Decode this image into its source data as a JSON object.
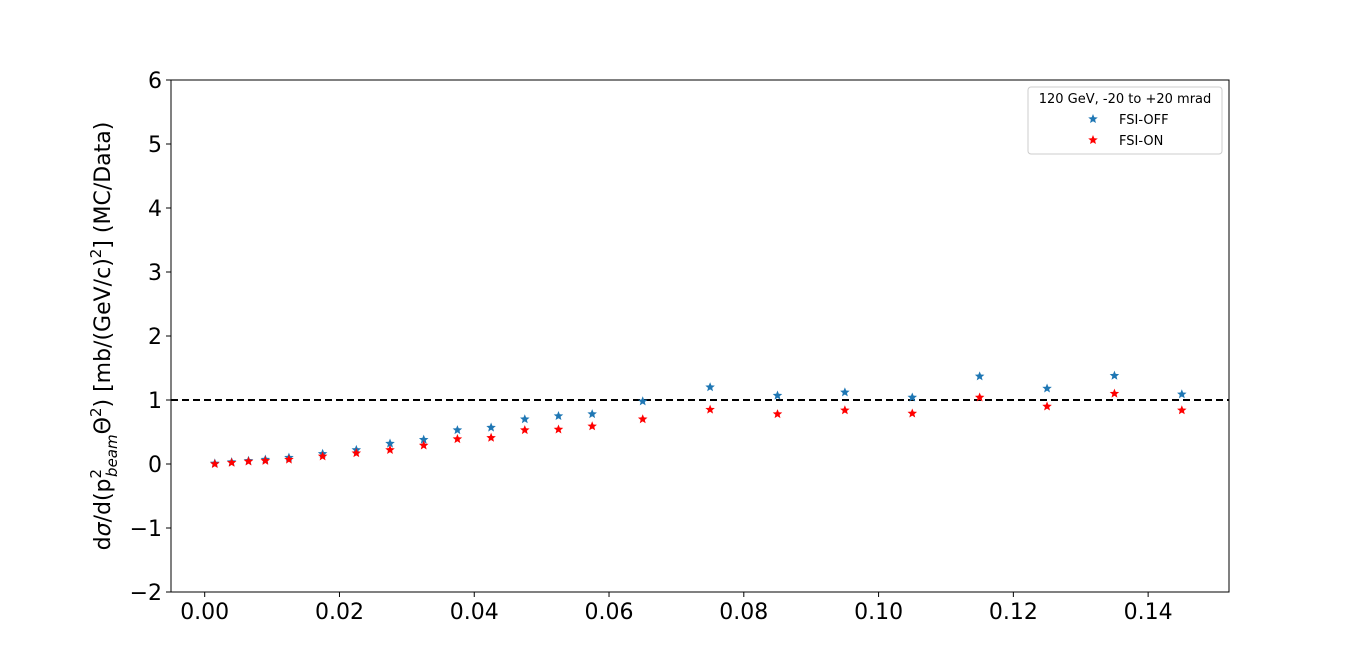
{
  "chart_data": {
    "type": "scatter",
    "title": "",
    "xlabel": "",
    "ylabel": {
      "prefix": "d",
      "sigma": "σ",
      "mid1": "/d(p",
      "sup": "2",
      "sub": "beam",
      "theta": "Θ",
      "sup2": "2",
      "suffix": ") [mb/(GeV/c)",
      "sup3": "2",
      "end": "] (MC/Data)"
    },
    "xlim": [
      -0.005,
      0.152
    ],
    "ylim": [
      -2,
      6
    ],
    "xticks": [
      0.0,
      0.02,
      0.04,
      0.06,
      0.08,
      0.1,
      0.12,
      0.14
    ],
    "xtick_labels": [
      "0.00",
      "0.02",
      "0.04",
      "0.06",
      "0.08",
      "0.10",
      "0.12",
      "0.14"
    ],
    "yticks": [
      -2,
      -1,
      0,
      1,
      2,
      3,
      4,
      5,
      6
    ],
    "ytick_labels": [
      "−2",
      "−1",
      "0",
      "1",
      "2",
      "3",
      "4",
      "5",
      "6"
    ],
    "grid": false,
    "reference_line": {
      "y": 1,
      "style": "dashed",
      "color": "#000000"
    },
    "legend": {
      "placement": "top-right",
      "title": "120 GeV, -20 to +20 mrad"
    },
    "x": [
      0.0015,
      0.004,
      0.0065,
      0.009,
      0.0125,
      0.0175,
      0.0225,
      0.0275,
      0.0325,
      0.0375,
      0.0425,
      0.0475,
      0.0525,
      0.0575,
      0.065,
      0.075,
      0.085,
      0.095,
      0.105,
      0.115,
      0.125,
      0.135,
      0.145
    ],
    "series": [
      {
        "name": "FSI-OFF",
        "color": "#1f77b4",
        "marker": "star",
        "values": [
          0.01,
          0.03,
          0.05,
          0.07,
          0.1,
          0.16,
          0.22,
          0.32,
          0.38,
          0.53,
          0.57,
          0.7,
          0.75,
          0.78,
          0.98,
          1.2,
          1.07,
          1.12,
          1.04,
          1.37,
          1.18,
          1.38,
          1.09
        ]
      },
      {
        "name": "FSI-ON",
        "color": "#ff0000",
        "marker": "star",
        "values": [
          0.0,
          0.02,
          0.04,
          0.05,
          0.07,
          0.12,
          0.17,
          0.22,
          0.29,
          0.39,
          0.41,
          0.53,
          0.54,
          0.59,
          0.7,
          0.85,
          0.78,
          0.84,
          0.79,
          1.04,
          0.9,
          1.1,
          0.84
        ]
      }
    ]
  }
}
